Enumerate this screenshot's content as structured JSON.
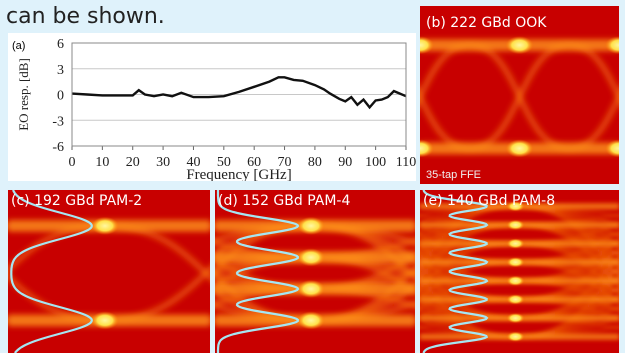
{
  "caption": "can be shown.",
  "chart_data": {
    "type": "line",
    "panel_label": "(a)",
    "title": "",
    "xlabel": "Frequency [GHz]",
    "ylabel": "EO resp. [dB]",
    "xlim": [
      0,
      110
    ],
    "ylim": [
      -6,
      6
    ],
    "xticks": [
      0,
      10,
      20,
      30,
      40,
      50,
      60,
      70,
      80,
      90,
      100,
      110
    ],
    "yticks": [
      6,
      3,
      0,
      -3,
      -6
    ],
    "grid": true,
    "series": [
      {
        "color": "#111111",
        "x": [
          0,
          5,
          10,
          15,
          20,
          22,
          24,
          27,
          30,
          33,
          36,
          40,
          45,
          50,
          55,
          60,
          65,
          68,
          70,
          73,
          76,
          80,
          83,
          85,
          88,
          90,
          92,
          94,
          96,
          98,
          100,
          102,
          104,
          106,
          108,
          110
        ],
        "y": [
          0.1,
          0.0,
          -0.1,
          -0.1,
          -0.1,
          0.5,
          0.0,
          -0.2,
          0.0,
          -0.2,
          0.2,
          -0.3,
          -0.3,
          -0.2,
          0.3,
          0.9,
          1.5,
          2.0,
          2.0,
          1.7,
          1.6,
          1.1,
          0.6,
          0.1,
          -0.5,
          -0.8,
          -0.3,
          -1.2,
          -0.6,
          -1.5,
          -0.7,
          -0.6,
          -0.3,
          0.4,
          0.1,
          -0.2
        ]
      }
    ]
  },
  "eyes": [
    {
      "id": "b",
      "label": "(b) 222 GBd OOK",
      "footnote": "35-tap FFE",
      "levels": 2,
      "histogram": false
    },
    {
      "id": "c",
      "label": "(c) 192 GBd PAM-2",
      "levels": 2,
      "histogram": true
    },
    {
      "id": "d",
      "label": "(d) 152 GBd PAM-4",
      "levels": 4,
      "histogram": true
    },
    {
      "id": "e",
      "label": "(e) 140 GBd PAM-8",
      "levels": 8,
      "histogram": true
    }
  ],
  "colors": {
    "eye_background": "#c80000",
    "eye_hot": "#ffe14a",
    "histogram": "#a6e6f2",
    "curve": "#111111",
    "grid": "#c8c8c8"
  }
}
